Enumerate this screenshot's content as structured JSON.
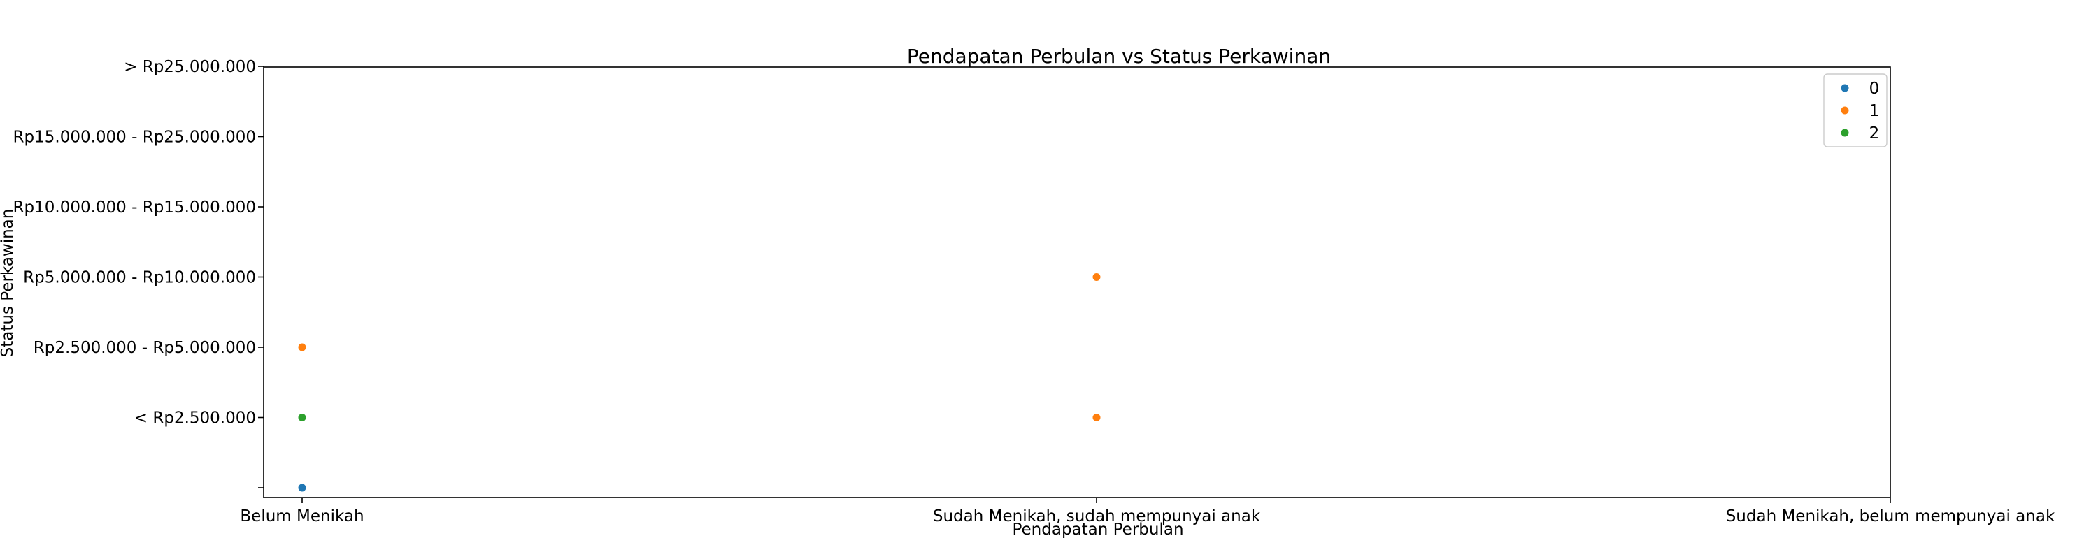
{
  "chart_data": {
    "type": "scatter",
    "title": "Pendapatan Perbulan vs Status Perkawinan",
    "xlabel": "Pendapatan Perbulan",
    "ylabel": "Status Perkawinan",
    "x_categories": [
      "Belum Menikah",
      "Sudah Menikah, sudah mempunyai anak",
      "Sudah Menikah, belum mempunyai anak"
    ],
    "y_categories": [
      "",
      "< Rp2.500.000",
      "Rp2.500.000 - Rp5.000.000",
      "Rp5.000.000 - Rp10.000.000",
      "Rp10.000.000 - Rp15.000.000",
      "Rp15.000.000 - Rp25.000.000",
      "> Rp25.000.000"
    ],
    "grid": false,
    "legend_position": "top-right",
    "series": [
      {
        "name": "0",
        "color": "#1f77b4",
        "points": [
          {
            "x": "Belum Menikah",
            "y": ""
          }
        ]
      },
      {
        "name": "1",
        "color": "#ff7f0e",
        "points": [
          {
            "x": "Belum Menikah",
            "y": "Rp2.500.000 - Rp5.000.000"
          },
          {
            "x": "Sudah Menikah, sudah mempunyai anak",
            "y": "Rp5.000.000 - Rp10.000.000"
          },
          {
            "x": "Sudah Menikah, sudah mempunyai anak",
            "y": "< Rp2.500.000"
          }
        ]
      },
      {
        "name": "2",
        "color": "#2ca02c",
        "points": [
          {
            "x": "Belum Menikah",
            "y": "< Rp2.500.000"
          }
        ]
      }
    ]
  }
}
